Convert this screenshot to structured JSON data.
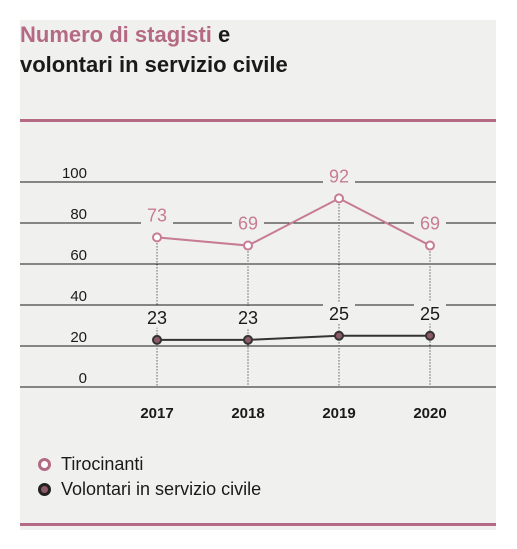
{
  "title": {
    "highlight": "Numero di stagisti",
    "rest_line1": " e",
    "line2": "volontari in servizio civile"
  },
  "colors": {
    "accent": "#b46a84",
    "tirocinanti": "#c77c95",
    "volontari": "#333333",
    "volontari_fill": "#8c5a68"
  },
  "legend": {
    "tirocinanti": "Tirocinanti",
    "volontari": "Volontari in servizio civile"
  },
  "chart_data": {
    "type": "line",
    "categories": [
      "2017",
      "2018",
      "2019",
      "2020"
    ],
    "series": [
      {
        "name": "Tirocinanti",
        "values": [
          73,
          69,
          92,
          69
        ]
      },
      {
        "name": "Volontari in servizio civile",
        "values": [
          23,
          23,
          25,
          25
        ]
      }
    ],
    "yticks": [
      "0",
      "20",
      "40",
      "60",
      "80",
      "100"
    ],
    "ylim": [
      0,
      100
    ],
    "grid": true,
    "legend_position": "bottom-left"
  }
}
